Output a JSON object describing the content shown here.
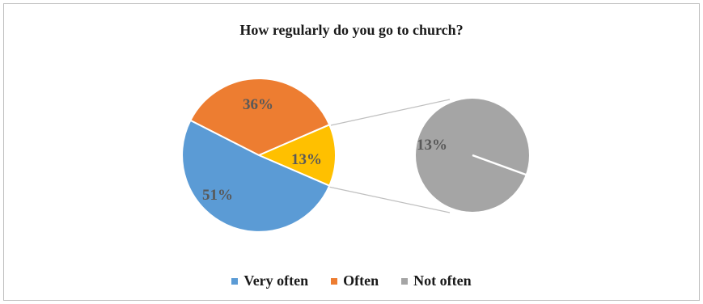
{
  "chart_data": {
    "type": "pie",
    "title": "How regularly do you go to church?",
    "categories": [
      "Very often",
      "Often",
      "Not often"
    ],
    "values": [
      51,
      36,
      13
    ],
    "data_labels": [
      "51%",
      "36%",
      "13%"
    ],
    "exploded": {
      "category": "Not often",
      "value": 13,
      "label": "13%",
      "style": "pie-of-pie"
    },
    "colors": {
      "Very often": "#5b9bd5",
      "Often": "#ed7d31",
      "Not often (main)": "#ffc000",
      "Not often (detail)": "#a5a5a5"
    },
    "legend_position": "bottom"
  }
}
